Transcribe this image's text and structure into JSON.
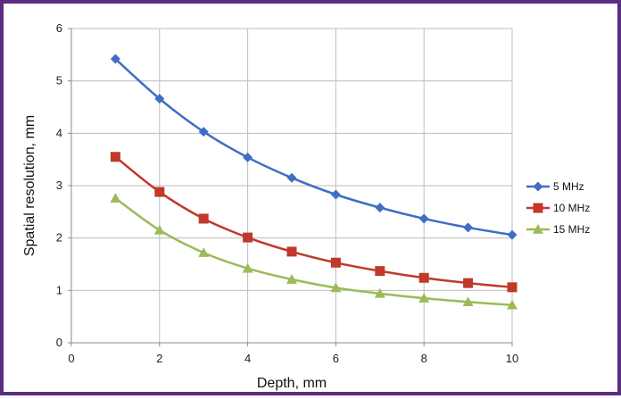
{
  "chart_data": {
    "type": "line",
    "title": "",
    "xlabel": "Depth, mm",
    "ylabel": "Spatial resolution, mm",
    "xlim": [
      0,
      10
    ],
    "ylim": [
      0,
      6
    ],
    "xticks": [
      0,
      2,
      4,
      6,
      8,
      10
    ],
    "yticks": [
      0,
      1,
      2,
      3,
      4,
      5,
      6
    ],
    "grid": true,
    "legend_position": "right",
    "x": [
      1,
      2,
      3,
      4,
      5,
      6,
      7,
      8,
      9,
      10
    ],
    "series": [
      {
        "name": "5 MHz",
        "color": "#3f6fc4",
        "marker": "diamond",
        "values": [
          5.42,
          4.66,
          4.03,
          3.54,
          3.15,
          2.83,
          2.58,
          2.37,
          2.2,
          2.06
        ]
      },
      {
        "name": "10 MHz",
        "color": "#c0392b",
        "marker": "square",
        "values": [
          3.55,
          2.88,
          2.37,
          2.01,
          1.74,
          1.53,
          1.37,
          1.24,
          1.14,
          1.06
        ]
      },
      {
        "name": "15 MHz",
        "color": "#9bbb59",
        "marker": "triangle",
        "values": [
          2.76,
          2.15,
          1.72,
          1.42,
          1.21,
          1.05,
          0.94,
          0.85,
          0.78,
          0.72
        ]
      }
    ]
  }
}
